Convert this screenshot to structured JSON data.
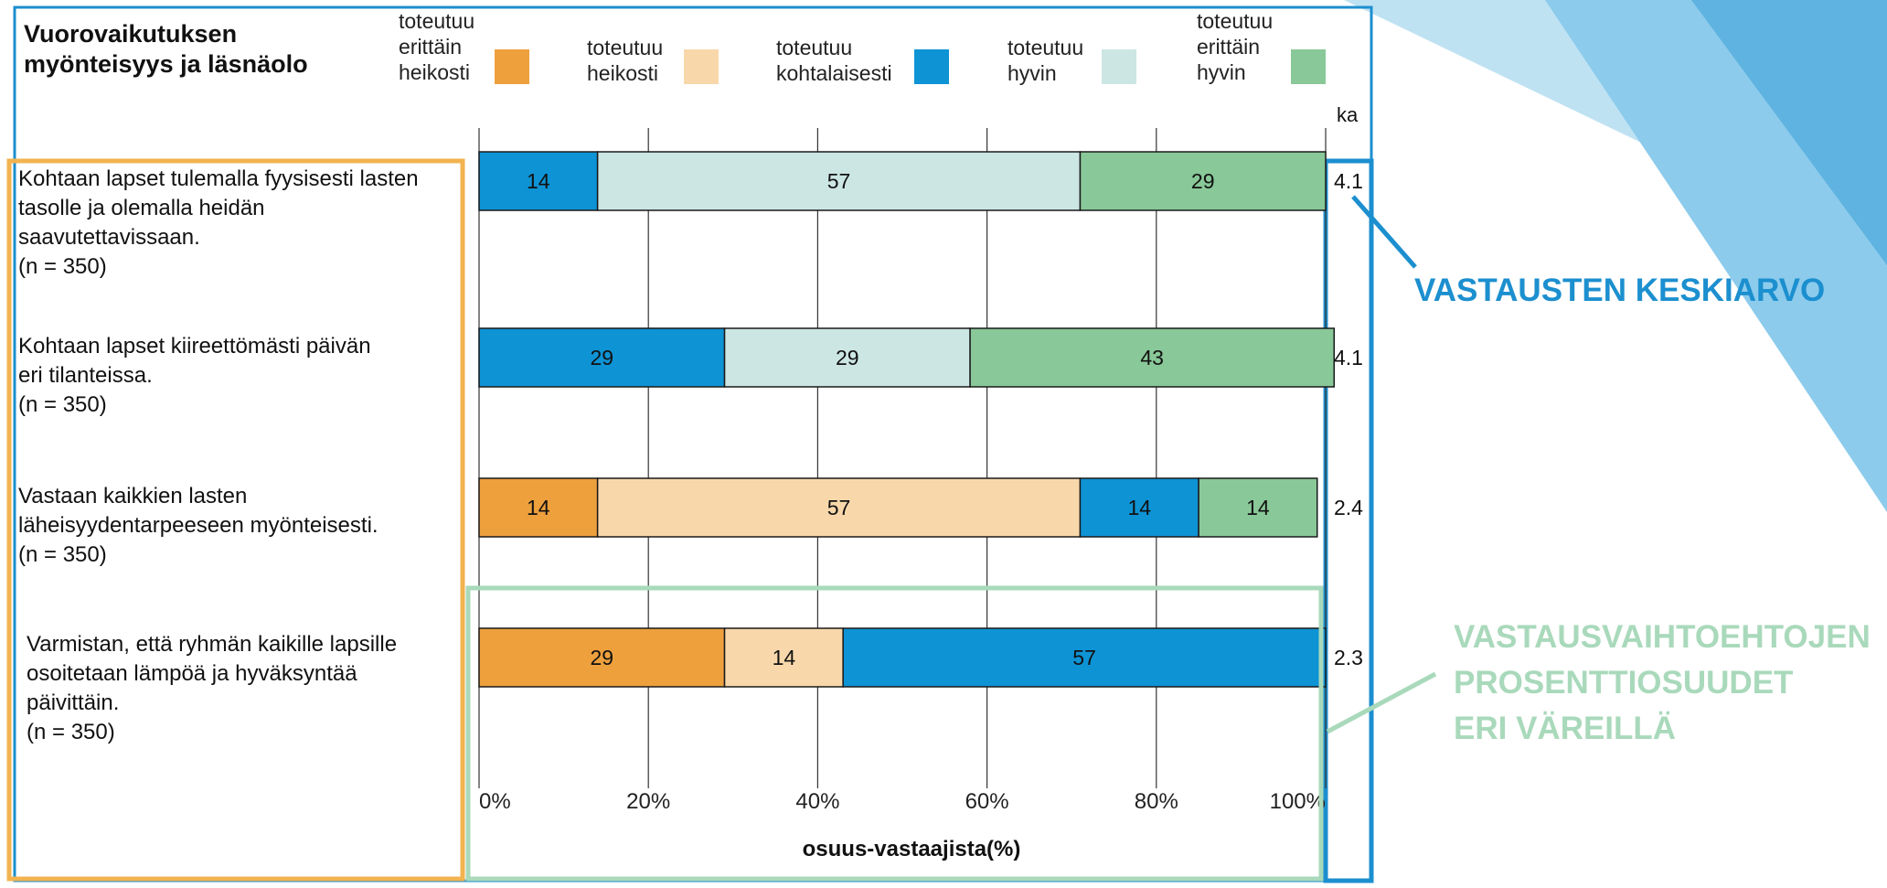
{
  "chart_data": {
    "type": "bar",
    "orientation": "horizontal",
    "stacked": "percent",
    "title": "Vuorovaikutuksen myönteisyys ja läsnäolo",
    "xlabel": "osuus-vastaajista(%)",
    "xlim": [
      0,
      100
    ],
    "xticks": [
      "0%",
      "20%",
      "40%",
      "60%",
      "80%",
      "100%"
    ],
    "grid": true,
    "legend_position": "top",
    "mean_header": "ka",
    "legend": [
      {
        "label": "toteutuu erittäin heikosti",
        "color": "#eea03d"
      },
      {
        "label": "toteutuu heikosti",
        "color": "#f8d8ab"
      },
      {
        "label": "toteutuu kohtalaisesti",
        "color": "#0e93d5"
      },
      {
        "label": "toteutuu hyvin",
        "color": "#cce6e3"
      },
      {
        "label": "toteutuu erittäin hyvin",
        "color": "#89c898"
      }
    ],
    "categories": [
      "Kohtaan lapset tulemalla fyysisesti lasten tasolle ja olemalla heidän saavutettavissaan. (n = 350)",
      "Kohtaan lapset kiireettömästi päivän eri tilanteissa. (n = 350)",
      "Vastaan kaikkien lasten läheisyydentarpeeseen myönteisesti. (n = 350)",
      "Varmistan, että ryhmän kaikille lapsille osoitetaan lämpöä ja hyväksyntää päivittäin. (n = 350)"
    ],
    "series": [
      {
        "name": "toteutuu erittäin heikosti",
        "values": [
          0,
          0,
          14,
          29
        ]
      },
      {
        "name": "toteutuu heikosti",
        "values": [
          0,
          0,
          57,
          14
        ]
      },
      {
        "name": "toteutuu kohtalaisesti",
        "values": [
          14,
          29,
          14,
          57
        ]
      },
      {
        "name": "toteutuu hyvin",
        "values": [
          57,
          29,
          0,
          0
        ]
      },
      {
        "name": "toteutuu erittäin hyvin",
        "values": [
          29,
          43,
          14,
          0
        ]
      }
    ],
    "means": [
      "4.1",
      "4.1",
      "2.4",
      "2.3"
    ]
  },
  "item_lines": [
    [
      "Kohtaan lapset tulemalla fyysisesti lasten",
      "tasolle ja olemalla heidän",
      "saavutettavissaan.",
      "(n = 350)"
    ],
    [
      "Kohtaan lapset kiireettömästi päivän",
      "eri tilanteissa.",
      "(n = 350)"
    ],
    [
      "Vastaan kaikkien lasten",
      "läheisyydentarpeeseen myönteisesti.",
      "(n = 350)"
    ],
    [
      "Varmistan, että ryhmän kaikille lapsille",
      "osoitetaan lämpöä ja hyväksyntää",
      "päivittäin.",
      "(n = 350)"
    ]
  ],
  "title_lines": [
    "Vuorovaikutuksen",
    "myönteisyys ja läsnäolo"
  ],
  "legend_lines": [
    [
      "toteutuu",
      "erittäin",
      "heikosti"
    ],
    [
      "toteutuu",
      "heikosti"
    ],
    [
      "toteutuu",
      "kohtalaisesti"
    ],
    [
      "toteutuu",
      "hyvin"
    ],
    [
      "toteutuu",
      "erittäin",
      "hyvin"
    ]
  ],
  "annotations": {
    "mean_label": "VASTAUSTEN KESKIARVO",
    "percent_lines": [
      "VASTAUSVAIHTOEHTOJEN",
      "PROSENTTIOSUUDET",
      "ERI VÄREILLÄ"
    ]
  },
  "colors": {
    "frame_blue": "#1c8fcf",
    "items_box": "#f2b350",
    "bars_box": "#a9d9bb",
    "deco_light": "#bfe2f3",
    "deco_mid": "#8ccbec",
    "deco_dark": "#5fb3e0"
  }
}
